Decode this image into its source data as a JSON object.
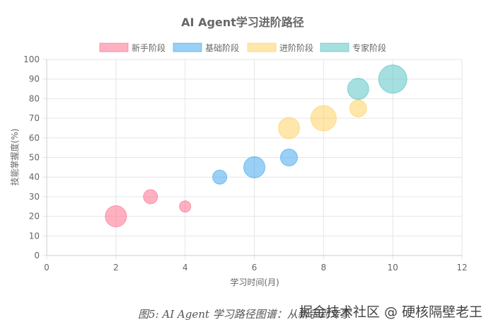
{
  "caption": "图5: AI Agent 学习路径图谱：从新手到专家",
  "watermark": "掘金技术社区 @ 硬核隔壁老王",
  "chart_data": {
    "type": "bubble",
    "title": "AI Agent学习进阶路径",
    "xlabel": "学习时间(月)",
    "ylabel": "技能掌握度(%)",
    "xlim": [
      0,
      12
    ],
    "ylim": [
      0,
      100
    ],
    "xticks": [
      0,
      2,
      4,
      6,
      8,
      10,
      12
    ],
    "yticks": [
      0,
      10,
      20,
      30,
      40,
      50,
      60,
      70,
      80,
      90,
      100
    ],
    "grid": true,
    "legend_position": "top-center",
    "series": [
      {
        "name": "新手阶段",
        "fill": "#ff6384",
        "stroke": "#ff6384",
        "points": [
          {
            "x": 2,
            "y": 20,
            "r": 15
          },
          {
            "x": 3,
            "y": 30,
            "r": 10
          },
          {
            "x": 4,
            "y": 25,
            "r": 8
          }
        ]
      },
      {
        "name": "基础阶段",
        "fill": "#36a2eb",
        "stroke": "#36a2eb",
        "points": [
          {
            "x": 5,
            "y": 40,
            "r": 10
          },
          {
            "x": 6,
            "y": 45,
            "r": 15
          },
          {
            "x": 7,
            "y": 50,
            "r": 12
          }
        ]
      },
      {
        "name": "进阶阶段",
        "fill": "#ffce56",
        "stroke": "#ffce56",
        "points": [
          {
            "x": 7,
            "y": 65,
            "r": 15
          },
          {
            "x": 8,
            "y": 70,
            "r": 18
          },
          {
            "x": 9,
            "y": 75,
            "r": 12
          }
        ]
      },
      {
        "name": "专家阶段",
        "fill": "#4bc0c0",
        "stroke": "#4bc0c0",
        "points": [
          {
            "x": 9,
            "y": 85,
            "r": 15
          },
          {
            "x": 10,
            "y": 90,
            "r": 20
          }
        ]
      }
    ]
  }
}
